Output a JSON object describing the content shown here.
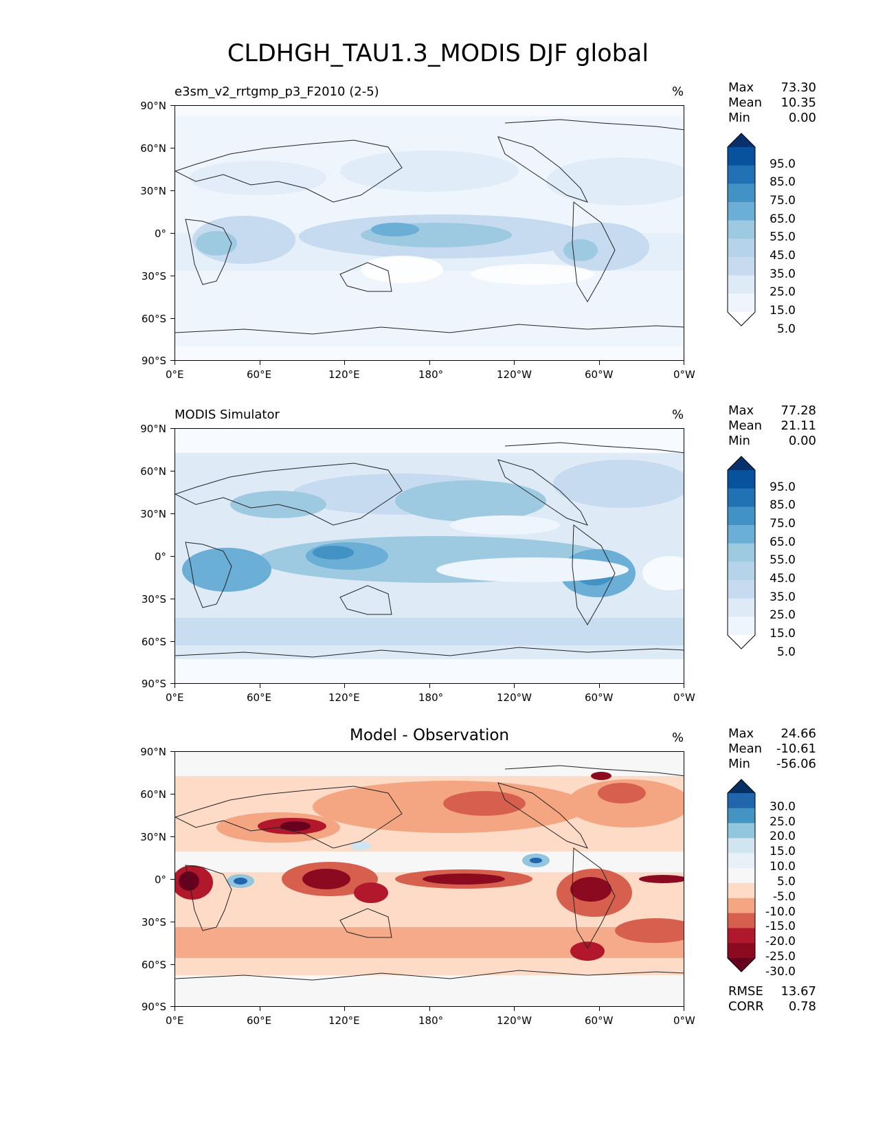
{
  "figure": {
    "title": "CLDHGH_TAU1.3_MODIS DJF global"
  },
  "axes": {
    "lat_ticks": [
      "90°N",
      "60°N",
      "30°N",
      "0°",
      "30°S",
      "60°S",
      "90°S"
    ],
    "lon_ticks": [
      "0°E",
      "60°E",
      "120°E",
      "180°",
      "120°W",
      "60°W",
      "0°W"
    ]
  },
  "panels": [
    {
      "id": "test",
      "title": "e3sm_v2_rrtgmp_p3_F2010 (2-5)",
      "title_position": "left",
      "units": "%",
      "stats": [
        {
          "label": "Max",
          "value": "73.30"
        },
        {
          "label": "Mean",
          "value": "10.35"
        },
        {
          "label": "Min",
          "value": "0.00"
        }
      ],
      "colorbar": {
        "labels": [
          "95.0",
          "85.0",
          "75.0",
          "65.0",
          "55.0",
          "45.0",
          "35.0",
          "25.0",
          "15.0",
          "5.0"
        ],
        "colors": [
          "#08306b",
          "#08519c",
          "#2171b5",
          "#4292c6",
          "#6baed6",
          "#9ecae1",
          "#b5d4e9",
          "#c6dbef",
          "#deebf7",
          "#eef5fc",
          "#ffffff"
        ]
      }
    },
    {
      "id": "reference",
      "title": "MODIS Simulator",
      "title_position": "left",
      "units": "%",
      "stats": [
        {
          "label": "Max",
          "value": "77.28"
        },
        {
          "label": "Mean",
          "value": "21.11"
        },
        {
          "label": "Min",
          "value": "0.00"
        }
      ],
      "colorbar": {
        "labels": [
          "95.0",
          "85.0",
          "75.0",
          "65.0",
          "55.0",
          "45.0",
          "35.0",
          "25.0",
          "15.0",
          "5.0"
        ],
        "colors": [
          "#08306b",
          "#08519c",
          "#2171b5",
          "#4292c6",
          "#6baed6",
          "#9ecae1",
          "#b5d4e9",
          "#c6dbef",
          "#deebf7",
          "#eef5fc",
          "#ffffff"
        ]
      }
    },
    {
      "id": "difference",
      "title": "Model - Observation",
      "title_position": "center",
      "units": "%",
      "stats": [
        {
          "label": "Max",
          "value": "24.66"
        },
        {
          "label": "Mean",
          "value": "-10.61"
        },
        {
          "label": "Min",
          "value": "-56.06"
        }
      ],
      "footer_stats": [
        {
          "label": "RMSE",
          "value": "13.67"
        },
        {
          "label": "CORR",
          "value": "0.78"
        }
      ],
      "colorbar": {
        "labels": [
          "30.0",
          "25.0",
          "20.0",
          "15.0",
          "10.0",
          "5.0",
          "-5.0",
          "-10.0",
          "-15.0",
          "-20.0",
          "-25.0",
          "-30.0"
        ],
        "colors": [
          "#053061",
          "#2166ac",
          "#4393c3",
          "#92c5de",
          "#d1e5f0",
          "#e8f1f7",
          "#f7f7f7",
          "#fddbc7",
          "#f4a582",
          "#d6604d",
          "#b2182b",
          "#8b0a1f",
          "#67001f"
        ]
      }
    }
  ],
  "chart_data": [
    {
      "type": "heatmap",
      "title": "e3sm_v2_rrtgmp_p3_F2010 (2-5)",
      "variable": "CLDHGH_TAU1.3_MODIS",
      "season": "DJF",
      "units": "%",
      "x_range": [
        0,
        360
      ],
      "y_range": [
        -90,
        90
      ],
      "x_ticks": [
        "0°E",
        "60°E",
        "120°E",
        "180°",
        "120°W",
        "60°W",
        "0°W"
      ],
      "y_ticks": [
        "90°N",
        "60°N",
        "30°N",
        "0°",
        "30°S",
        "60°S",
        "90°S"
      ],
      "stats": {
        "max": 73.3,
        "mean": 10.35,
        "min": 0.0
      },
      "levels": [
        5,
        15,
        25,
        35,
        45,
        55,
        65,
        75,
        85,
        95
      ]
    },
    {
      "type": "heatmap",
      "title": "MODIS Simulator",
      "variable": "CLDHGH_TAU1.3_MODIS",
      "season": "DJF",
      "units": "%",
      "x_range": [
        0,
        360
      ],
      "y_range": [
        -90,
        90
      ],
      "x_ticks": [
        "0°E",
        "60°E",
        "120°E",
        "180°",
        "120°W",
        "60°W",
        "0°W"
      ],
      "y_ticks": [
        "90°N",
        "60°N",
        "30°N",
        "0°",
        "30°S",
        "60°S",
        "90°S"
      ],
      "stats": {
        "max": 77.28,
        "mean": 21.11,
        "min": 0.0
      },
      "levels": [
        5,
        15,
        25,
        35,
        45,
        55,
        65,
        75,
        85,
        95
      ]
    },
    {
      "type": "heatmap",
      "title": "Model - Observation",
      "variable": "CLDHGH_TAU1.3_MODIS",
      "season": "DJF",
      "units": "%",
      "x_range": [
        0,
        360
      ],
      "y_range": [
        -90,
        90
      ],
      "x_ticks": [
        "0°E",
        "60°E",
        "120°E",
        "180°",
        "120°W",
        "60°W",
        "0°W"
      ],
      "y_ticks": [
        "90°N",
        "60°N",
        "30°N",
        "0°",
        "30°S",
        "60°S",
        "90°S"
      ],
      "stats": {
        "max": 24.66,
        "mean": -10.61,
        "min": -56.06,
        "rmse": 13.67,
        "corr": 0.78
      },
      "levels": [
        -30,
        -25,
        -20,
        -15,
        -10,
        -5,
        5,
        10,
        15,
        20,
        25,
        30
      ]
    }
  ]
}
